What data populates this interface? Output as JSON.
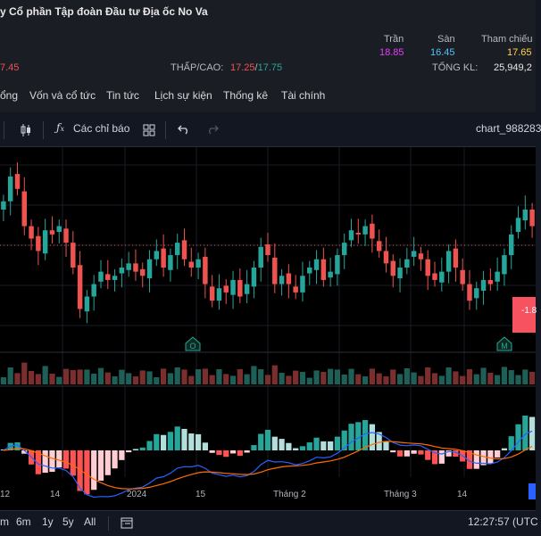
{
  "header": {
    "company_name": "y Cổ phần Tập đoàn Đầu tư Địa ốc No Va",
    "left_price_fragment": "7.45",
    "stats": [
      {
        "label": "Trần",
        "value": "18.85",
        "color": "#e040fb"
      },
      {
        "label": "Sàn",
        "value": "16.45",
        "color": "#4fc3f7"
      },
      {
        "label": "Tham chiếu",
        "value": "17.65",
        "color": "#ffd54f"
      }
    ],
    "low_high_label": "THẤP/CAO:",
    "low_value": "17.25",
    "slash": "/",
    "high_value": "17.75",
    "total_volume_label": "TỔNG KL:",
    "total_volume_value": "25,949,2"
  },
  "tabs": [
    "ổng",
    "Vốn và cổ tức",
    "Tin tức",
    "Lịch sự kiện",
    "Thống kê",
    "Tài chính"
  ],
  "toolbar": {
    "indicators_label": "Các chỉ báo",
    "chart_id": "chart_988283"
  },
  "chart": {
    "price_tag": "-1.8",
    "markers": [
      "O",
      "M"
    ],
    "time_labels": [
      "12",
      "14",
      "2024",
      "15",
      "Tháng 2",
      "Tháng 3",
      "14"
    ],
    "colors": {
      "up": "#26a69a",
      "down": "#ef5350",
      "macd": "#2962ff",
      "signal": "#ff6d00"
    }
  },
  "chart_data": {
    "type": "candlestick",
    "ohlc_close": [
      17.9,
      18.2,
      18.05,
      17.6,
      17.45,
      17.3,
      17.55,
      17.5,
      17.6,
      17.4,
      17.1,
      16.6,
      16.75,
      16.9,
      17.05,
      16.95,
      17.0,
      17.1,
      17.15,
      17.05,
      17.0,
      17.2,
      17.3,
      17.1,
      17.25,
      17.4,
      17.2,
      17.1,
      17.2,
      16.9,
      16.7,
      16.85,
      16.8,
      16.95,
      16.75,
      16.9,
      17.1,
      17.35,
      17.25,
      16.9,
      17.0,
      16.9,
      16.8,
      17.0,
      17.1,
      17.2,
      16.95,
      17.05,
      17.25,
      17.4,
      17.55,
      17.5,
      17.6,
      17.45,
      17.3,
      17.15,
      17.0,
      17.1,
      17.2,
      17.3,
      17.2,
      17.0,
      16.95,
      17.05,
      17.3,
      17.1,
      16.9,
      16.7,
      16.85,
      16.95,
      16.9,
      17.05,
      17.25,
      17.5,
      17.7,
      17.8,
      17.6
    ]
  },
  "footer": {
    "ranges": [
      "m",
      "6m",
      "1y",
      "5y",
      "All"
    ],
    "clock": "12:27:57 (UTC"
  }
}
